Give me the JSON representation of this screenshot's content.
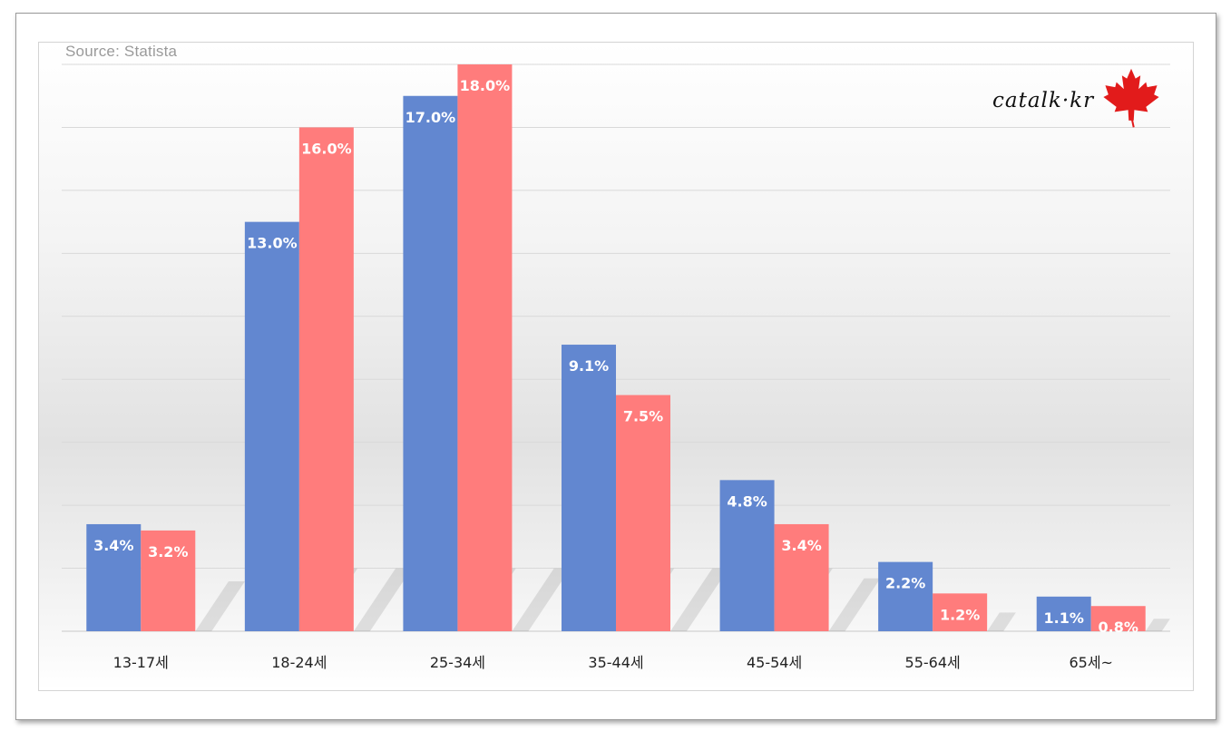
{
  "source_note": "Source: Statista",
  "logo_text": "catalk·kr",
  "logo_icon": "maple-leaf-icon",
  "colors": {
    "series1": "#6287D0",
    "series2": "#FF7C7C",
    "grid": "#d9d9d9"
  },
  "chart_data": {
    "type": "bar",
    "title": "",
    "xlabel": "",
    "ylabel": "",
    "ylim": [
      0,
      18
    ],
    "grid": true,
    "legend": "none",
    "categories": [
      "13-17세",
      "18-24세",
      "25-34세",
      "35-44세",
      "45-54세",
      "55-64세",
      "65세~"
    ],
    "series": [
      {
        "values": [
          3.4,
          13.0,
          17.0,
          9.1,
          4.8,
          2.2,
          1.1
        ],
        "labels": [
          "3.4%",
          "13.0%",
          "17.0%",
          "9.1%",
          "4.8%",
          "2.2%",
          "1.1%"
        ]
      },
      {
        "values": [
          3.2,
          16.0,
          18.0,
          7.5,
          3.4,
          1.2,
          0.8
        ],
        "labels": [
          "3.2%",
          "16.0%",
          "18.0%",
          "7.5%",
          "3.4%",
          "1.2%",
          "0.8%"
        ]
      }
    ]
  }
}
